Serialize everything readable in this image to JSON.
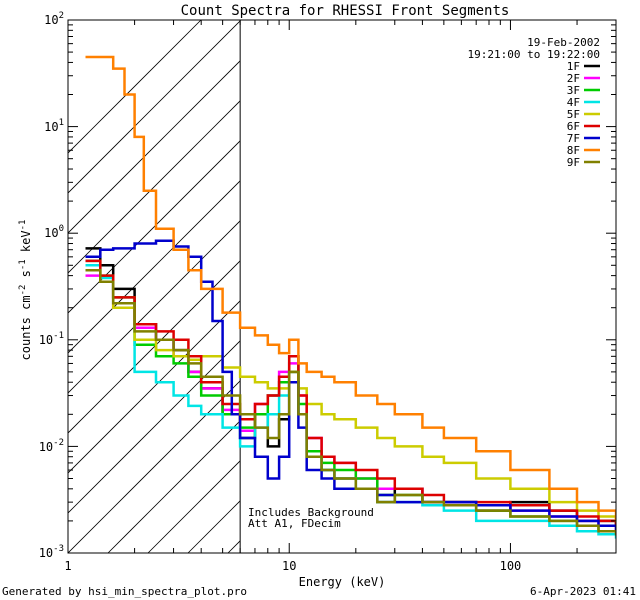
{
  "chart_data": {
    "type": "line",
    "title": "Count Spectra for RHESSI Front Segments",
    "xlabel": "Energy (keV)",
    "ylabel": "counts cm-2 s-1 keV-1",
    "xscale": "log",
    "yscale": "log",
    "xlim": [
      1,
      300
    ],
    "ylim": [
      0.001,
      100
    ],
    "x_tick_labels": [
      "1",
      "10",
      "100"
    ],
    "y_tick_labels": [
      "10-3",
      "10-2",
      "10-1",
      "100",
      "101",
      "102"
    ],
    "date": "19-Feb-2002",
    "time_range": "19:21:00 to 19:22:00",
    "annotation_lines": [
      "Includes Background",
      "Att A1, FDecim"
    ],
    "hatched_region_keV": [
      1,
      6
    ],
    "footer_left": "Generated by hsi_min_spectra_plot.pro",
    "footer_right": "6-Apr-2023 01:41",
    "series": [
      {
        "name": "1F",
        "color": "#000000",
        "x": [
          1.2,
          1.4,
          1.6,
          2.0,
          2.5,
          3.0,
          3.5,
          4.0,
          5.0,
          6.0,
          7.0,
          8.0,
          9.0,
          10.0,
          11.0,
          12.0,
          14.0,
          16.0,
          20.0,
          25.0,
          30.0,
          40.0,
          50.0,
          70.0,
          100.0,
          150.0,
          200.0,
          250.0,
          300.0
        ],
        "y": [
          0.72,
          0.5,
          0.3,
          0.14,
          0.1,
          0.08,
          0.05,
          0.035,
          0.02,
          0.012,
          0.02,
          0.01,
          0.018,
          0.05,
          0.02,
          0.008,
          0.006,
          0.005,
          0.004,
          0.003,
          0.004,
          0.003,
          0.003,
          0.0025,
          0.003,
          0.0025,
          0.002,
          0.002,
          0.0018
        ]
      },
      {
        "name": "2F",
        "color": "#ff00ff",
        "x": [
          1.2,
          1.4,
          1.6,
          2.0,
          2.5,
          3.0,
          3.5,
          4.0,
          5.0,
          6.0,
          7.0,
          8.0,
          9.0,
          10.0,
          11.0,
          12.0,
          14.0,
          16.0,
          20.0,
          25.0,
          30.0,
          40.0,
          50.0,
          70.0,
          100.0,
          150.0,
          200.0,
          250.0,
          300.0
        ],
        "y": [
          0.4,
          0.35,
          0.2,
          0.13,
          0.1,
          0.07,
          0.05,
          0.035,
          0.022,
          0.014,
          0.025,
          0.03,
          0.05,
          0.06,
          0.03,
          0.012,
          0.008,
          0.007,
          0.005,
          0.004,
          0.004,
          0.003,
          0.003,
          0.0028,
          0.0025,
          0.0022,
          0.002,
          0.0018,
          0.0016
        ]
      },
      {
        "name": "3F",
        "color": "#00cc00",
        "x": [
          1.2,
          1.4,
          1.6,
          2.0,
          2.5,
          3.0,
          3.5,
          4.0,
          5.0,
          6.0,
          7.0,
          8.0,
          9.0,
          10.0,
          11.0,
          12.0,
          14.0,
          16.0,
          20.0,
          25.0,
          30.0,
          40.0,
          50.0,
          70.0,
          100.0,
          150.0,
          200.0,
          250.0,
          300.0
        ],
        "y": [
          0.55,
          0.4,
          0.25,
          0.09,
          0.07,
          0.06,
          0.045,
          0.03,
          0.02,
          0.015,
          0.02,
          0.03,
          0.04,
          0.07,
          0.025,
          0.009,
          0.007,
          0.006,
          0.005,
          0.0035,
          0.0035,
          0.003,
          0.003,
          0.0025,
          0.0022,
          0.002,
          0.0018,
          0.0016,
          0.0015
        ]
      },
      {
        "name": "4F",
        "color": "#00e5e5",
        "x": [
          1.2,
          1.4,
          1.6,
          2.0,
          2.5,
          3.0,
          3.5,
          4.0,
          5.0,
          6.0,
          7.0,
          8.0,
          9.0,
          10.0,
          11.0,
          12.0,
          14.0,
          16.0,
          20.0,
          25.0,
          30.0,
          40.0,
          50.0,
          70.0,
          100.0,
          150.0,
          200.0,
          250.0,
          300.0
        ],
        "y": [
          0.5,
          0.38,
          0.22,
          0.05,
          0.04,
          0.03,
          0.024,
          0.02,
          0.015,
          0.01,
          0.015,
          0.02,
          0.03,
          0.05,
          0.02,
          0.008,
          0.006,
          0.005,
          0.004,
          0.003,
          0.003,
          0.0028,
          0.0025,
          0.002,
          0.002,
          0.0018,
          0.0016,
          0.0015,
          0.0014
        ]
      },
      {
        "name": "5F",
        "color": "#cccc00",
        "x": [
          1.2,
          1.4,
          1.6,
          2.0,
          2.5,
          3.0,
          3.5,
          4.0,
          5.0,
          6.0,
          7.0,
          8.0,
          9.0,
          10.0,
          11.0,
          12.0,
          14.0,
          16.0,
          20.0,
          25.0,
          30.0,
          40.0,
          50.0,
          70.0,
          100.0,
          150.0,
          200.0,
          250.0,
          300.0
        ],
        "y": [
          0.45,
          0.35,
          0.2,
          0.1,
          0.08,
          0.07,
          0.065,
          0.07,
          0.055,
          0.045,
          0.04,
          0.035,
          0.035,
          0.05,
          0.035,
          0.025,
          0.02,
          0.018,
          0.015,
          0.012,
          0.01,
          0.008,
          0.007,
          0.005,
          0.004,
          0.003,
          0.0025,
          0.0022,
          0.002
        ]
      },
      {
        "name": "6F",
        "color": "#dd0000",
        "x": [
          1.2,
          1.4,
          1.6,
          2.0,
          2.5,
          3.0,
          3.5,
          4.0,
          5.0,
          6.0,
          7.0,
          8.0,
          9.0,
          10.0,
          11.0,
          12.0,
          14.0,
          16.0,
          20.0,
          25.0,
          30.0,
          40.0,
          50.0,
          70.0,
          100.0,
          150.0,
          200.0,
          250.0,
          300.0
        ],
        "y": [
          0.55,
          0.4,
          0.25,
          0.14,
          0.12,
          0.1,
          0.07,
          0.04,
          0.025,
          0.018,
          0.025,
          0.03,
          0.045,
          0.07,
          0.03,
          0.012,
          0.008,
          0.007,
          0.006,
          0.005,
          0.004,
          0.0035,
          0.003,
          0.003,
          0.0028,
          0.0025,
          0.0022,
          0.002,
          0.0018
        ]
      },
      {
        "name": "7F",
        "color": "#0000cc",
        "x": [
          1.2,
          1.4,
          1.6,
          2.0,
          2.5,
          3.0,
          3.5,
          4.0,
          4.5,
          5.0,
          5.5,
          6.0,
          7.0,
          8.0,
          9.0,
          10.0,
          11.0,
          12.0,
          14.0,
          16.0,
          20.0,
          25.0,
          30.0,
          40.0,
          50.0,
          70.0,
          100.0,
          150.0,
          200.0,
          250.0,
          300.0
        ],
        "y": [
          0.6,
          0.7,
          0.72,
          0.8,
          0.85,
          0.75,
          0.6,
          0.35,
          0.15,
          0.05,
          0.02,
          0.012,
          0.008,
          0.005,
          0.008,
          0.04,
          0.015,
          0.006,
          0.005,
          0.004,
          0.004,
          0.0035,
          0.003,
          0.003,
          0.003,
          0.0028,
          0.0025,
          0.0022,
          0.002,
          0.0018,
          0.0016
        ]
      },
      {
        "name": "8F",
        "color": "#ff8000",
        "x": [
          1.2,
          1.4,
          1.6,
          1.8,
          2.0,
          2.2,
          2.5,
          3.0,
          3.5,
          4.0,
          5.0,
          6.0,
          7.0,
          8.0,
          9.0,
          10.0,
          11.0,
          12.0,
          14.0,
          16.0,
          20.0,
          25.0,
          30.0,
          40.0,
          50.0,
          70.0,
          100.0,
          150.0,
          200.0,
          250.0,
          300.0
        ],
        "y": [
          45,
          45,
          35,
          20,
          8,
          2.5,
          1.1,
          0.7,
          0.45,
          0.3,
          0.18,
          0.13,
          0.11,
          0.09,
          0.075,
          0.1,
          0.06,
          0.05,
          0.045,
          0.04,
          0.03,
          0.025,
          0.02,
          0.015,
          0.012,
          0.009,
          0.006,
          0.004,
          0.003,
          0.0025,
          0.002
        ]
      },
      {
        "name": "9F",
        "color": "#808000",
        "x": [
          1.2,
          1.4,
          1.6,
          2.0,
          2.5,
          3.0,
          3.5,
          4.0,
          5.0,
          6.0,
          7.0,
          8.0,
          9.0,
          10.0,
          11.0,
          12.0,
          14.0,
          16.0,
          20.0,
          25.0,
          30.0,
          40.0,
          50.0,
          70.0,
          100.0,
          150.0,
          200.0,
          250.0,
          300.0
        ],
        "y": [
          0.45,
          0.35,
          0.22,
          0.12,
          0.1,
          0.08,
          0.06,
          0.045,
          0.03,
          0.02,
          0.015,
          0.012,
          0.02,
          0.05,
          0.02,
          0.008,
          0.006,
          0.005,
          0.004,
          0.003,
          0.0035,
          0.003,
          0.0028,
          0.0025,
          0.0022,
          0.002,
          0.0018,
          0.0016,
          0.0015
        ]
      }
    ]
  }
}
